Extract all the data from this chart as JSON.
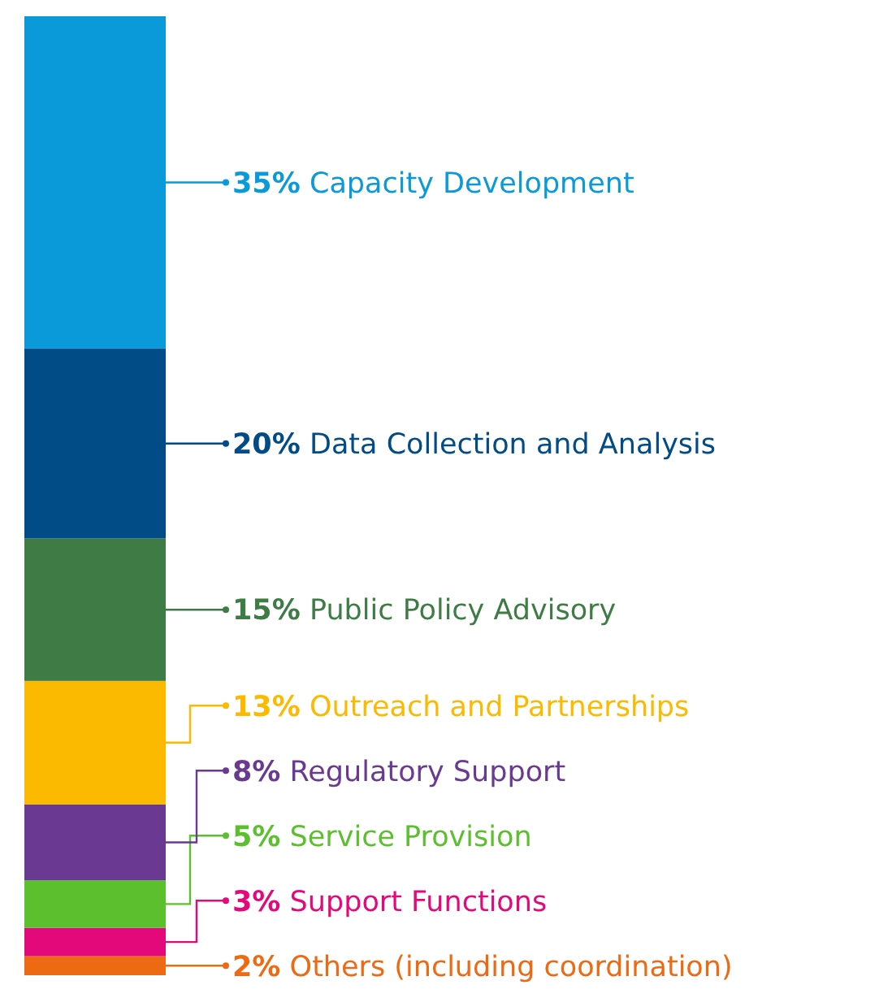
{
  "chart_data": {
    "type": "bar",
    "stacked": true,
    "legend": "right",
    "categories": [
      null
    ],
    "series": [
      {
        "name": "Others (including coordination)",
        "color": "#ee6a12",
        "values": [
          2
        ],
        "value_labels": [
          "2%"
        ]
      },
      {
        "name": "Support Functions",
        "color": "#e4097a",
        "values": [
          3
        ],
        "value_labels": [
          "3%"
        ]
      },
      {
        "name": "Service Provision",
        "color": "#5bbf2e",
        "values": [
          5
        ],
        "value_labels": [
          "5%"
        ]
      },
      {
        "name": "Regulatory Support",
        "color": "#6a3a92",
        "values": [
          8
        ],
        "value_labels": [
          "8%"
        ]
      },
      {
        "name": "Outreach and Partnerships",
        "color": "#fbb900",
        "values": [
          13
        ],
        "value_labels": [
          "13%"
        ]
      },
      {
        "name": "Public Policy Advisory",
        "color": "#3f7c45",
        "values": [
          15
        ],
        "value_labels": [
          "15%"
        ]
      },
      {
        "name": "Data Collection and Analysis",
        "color": "#014b87",
        "values": [
          20
        ],
        "value_labels": [
          "20%"
        ]
      },
      {
        "name": "Capacity Development",
        "color": "#0a9ad9",
        "values": [
          35
        ],
        "value_labels": [
          "35%"
        ]
      }
    ]
  }
}
